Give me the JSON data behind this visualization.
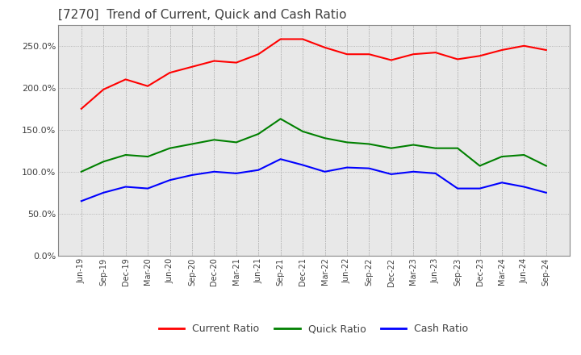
{
  "title": "[7270]  Trend of Current, Quick and Cash Ratio",
  "title_fontsize": 11,
  "title_color": "#404040",
  "background_color": "#ffffff",
  "plot_background": "#e8e8e8",
  "grid_color": "#aaaaaa",
  "x_labels": [
    "Jun-19",
    "Sep-19",
    "Dec-19",
    "Mar-20",
    "Jun-20",
    "Sep-20",
    "Dec-20",
    "Mar-21",
    "Jun-21",
    "Sep-21",
    "Dec-21",
    "Mar-22",
    "Jun-22",
    "Sep-22",
    "Dec-22",
    "Mar-23",
    "Jun-23",
    "Sep-23",
    "Dec-23",
    "Mar-24",
    "Jun-24",
    "Sep-24"
  ],
  "current_ratio": [
    175,
    198,
    210,
    202,
    218,
    225,
    232,
    230,
    240,
    258,
    258,
    248,
    240,
    240,
    233,
    240,
    242,
    234,
    238,
    245,
    250,
    245
  ],
  "quick_ratio": [
    100,
    112,
    120,
    118,
    128,
    133,
    138,
    135,
    145,
    163,
    148,
    140,
    135,
    133,
    128,
    132,
    128,
    128,
    107,
    118,
    120,
    107
  ],
  "cash_ratio": [
    65,
    75,
    82,
    80,
    90,
    96,
    100,
    98,
    102,
    115,
    108,
    100,
    105,
    104,
    97,
    100,
    98,
    80,
    80,
    87,
    82,
    75
  ],
  "current_color": "#ff0000",
  "quick_color": "#008000",
  "cash_color": "#0000ff",
  "line_width": 1.5,
  "ylim": [
    0,
    275
  ],
  "yticks": [
    0,
    50,
    100,
    150,
    200,
    250
  ],
  "legend_labels": [
    "Current Ratio",
    "Quick Ratio",
    "Cash Ratio"
  ],
  "legend_colors": [
    "#ff0000",
    "#008000",
    "#0000ff"
  ]
}
